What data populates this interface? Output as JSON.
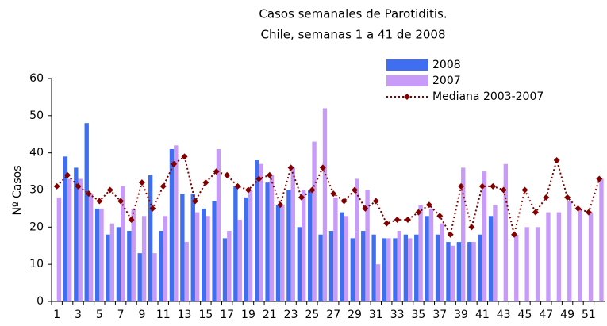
{
  "chart_data": {
    "type": "bar",
    "title": "Casos semanales de Parotiditis.",
    "subtitle": "Chile, semanas 1 a 41 de 2008",
    "y_label": "Nº Casos",
    "categories": [
      "1",
      null,
      "3",
      null,
      "5",
      null,
      "7",
      null,
      "9",
      null,
      "11",
      null,
      "13",
      null,
      "15",
      null,
      "17",
      null,
      "19",
      null,
      "21",
      null,
      "23",
      null,
      "25",
      null,
      "27",
      null,
      "29",
      null,
      "31",
      null,
      "33",
      null,
      "35",
      null,
      "37",
      null,
      "39",
      null,
      "41",
      null,
      "43",
      null,
      "45",
      null,
      "47",
      null,
      "49",
      null,
      "51",
      null
    ],
    "series": [
      {
        "name": "2008",
        "color": "#3f6ff0",
        "values": [
          null,
          39,
          36,
          48,
          25,
          18,
          20,
          19,
          13,
          34,
          19,
          41,
          29,
          29,
          25,
          27,
          17,
          31,
          28,
          38,
          32,
          26,
          30,
          20,
          30,
          18,
          19,
          24,
          17,
          19,
          18,
          17,
          17,
          18,
          18,
          23,
          18,
          16,
          16,
          16,
          18,
          23,
          null,
          null,
          null,
          null,
          null,
          null,
          null,
          null,
          null,
          null
        ]
      },
      {
        "name": "2007",
        "color": "#c79bf7",
        "values": [
          28,
          33,
          33,
          29,
          25,
          21,
          31,
          25,
          23,
          13,
          23,
          42,
          16,
          24,
          23,
          41,
          19,
          22,
          30,
          37,
          34,
          26,
          36,
          30,
          43,
          52,
          28,
          23,
          33,
          30,
          10,
          17,
          19,
          17,
          26,
          25,
          21,
          15,
          36,
          16,
          35,
          26,
          37,
          18,
          20,
          20,
          24,
          24,
          27,
          25,
          24,
          33
        ]
      },
      {
        "name": "Mediana 2003-2007",
        "color": "#800000",
        "type": "line",
        "values": [
          31,
          34,
          31,
          29,
          27,
          30,
          27,
          22,
          32,
          25,
          31,
          37,
          39,
          27,
          32,
          35,
          34,
          31,
          30,
          33,
          34,
          26,
          36,
          28,
          30,
          36,
          29,
          27,
          30,
          25,
          27,
          21,
          22,
          22,
          24,
          26,
          23,
          18,
          31,
          20,
          31,
          31,
          30,
          18,
          30,
          24,
          28,
          38,
          28,
          25,
          24,
          33
        ]
      }
    ],
    "ylim": [
      0,
      60
    ],
    "yticks": [
      0,
      10,
      20,
      30,
      40,
      50,
      60
    ],
    "grid": false
  }
}
